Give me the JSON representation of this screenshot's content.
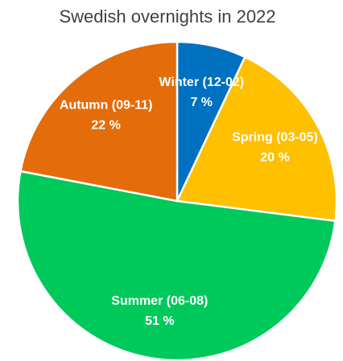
{
  "chart_data": {
    "type": "pie",
    "title": "Swedish overnights in 2022",
    "categories": [
      "Winter (12-02)",
      "Spring (03-05)",
      "Summer (06-08)",
      "Autumn (09-11)"
    ],
    "values": [
      7,
      20,
      51,
      22
    ],
    "value_labels": [
      "7 %",
      "20 %",
      "51 %",
      "22 %"
    ],
    "colors": [
      "#0070c0",
      "#ffc000",
      "#00c95c",
      "#e46c0a"
    ]
  }
}
